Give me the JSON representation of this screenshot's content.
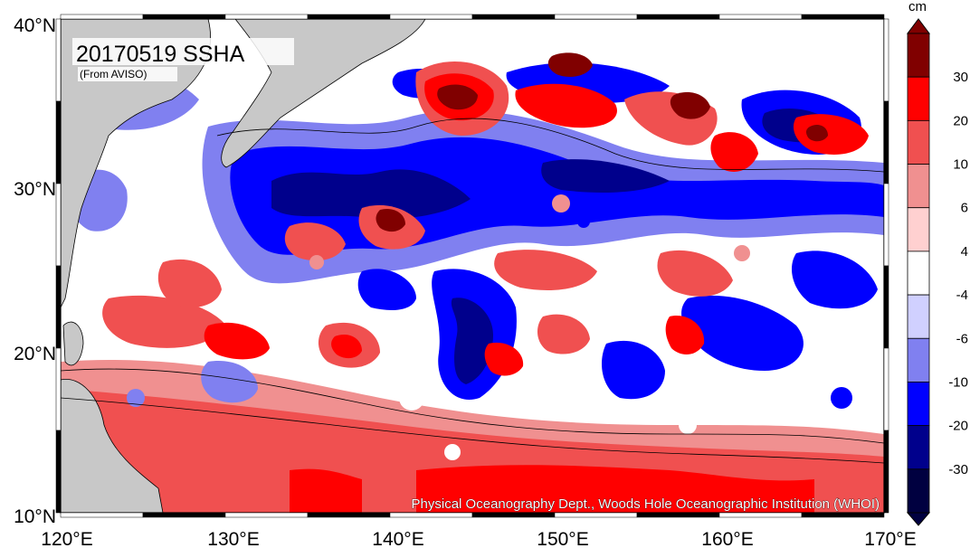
{
  "map": {
    "title": "20170519 SSHA",
    "source": "(From AVISO)",
    "credit": "Physical Oceanography Dept., Woods Hole Oceanographic Institution (WHOI)",
    "lon_ticks": [
      "120°E",
      "130°E",
      "140°E",
      "150°E",
      "160°E",
      "170°E"
    ],
    "lat_ticks": [
      "40°N",
      "30°N",
      "20°N",
      "10°N"
    ],
    "extent": {
      "lon": [
        120,
        170
      ],
      "lat": [
        10,
        40
      ]
    },
    "land_color": "#c8c8c8",
    "ocean_base_color": "#ffffff"
  },
  "colorbar": {
    "unit": "cm",
    "tick_labels": [
      "30",
      "20",
      "10",
      "6",
      "4",
      "-4",
      "-6",
      "-10",
      "-20",
      "-30"
    ],
    "colors": [
      "#800000",
      "#ff0000",
      "#f05050",
      "#f09090",
      "#ffd0d0",
      "#ffffff",
      "#d0d0ff",
      "#8080f0",
      "#0000ff",
      "#00008c",
      "#000040"
    ]
  }
}
